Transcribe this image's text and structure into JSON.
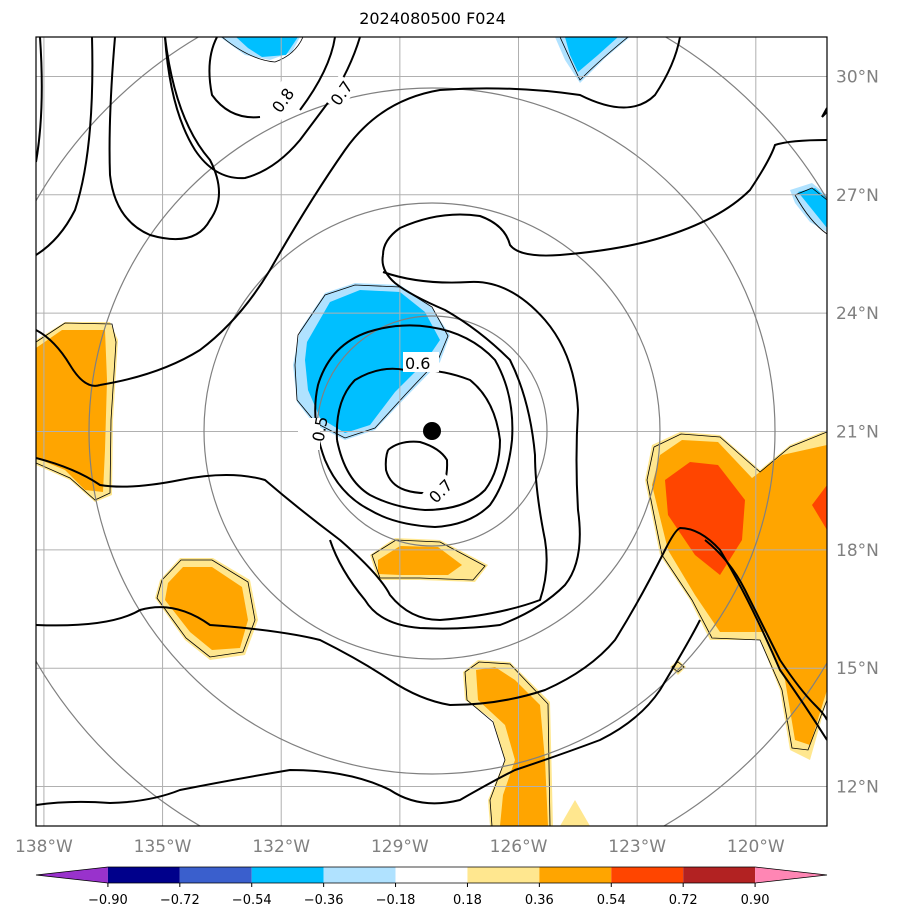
{
  "title": "2024080500 F024",
  "map": {
    "lon_range": [
      -138.2,
      -118.2
    ],
    "lat_range": [
      11,
      31
    ],
    "lon_ticks": [
      {
        "value": -138,
        "label": "138°W"
      },
      {
        "value": -135,
        "label": "135°W"
      },
      {
        "value": -132,
        "label": "132°W"
      },
      {
        "value": -129,
        "label": "129°W"
      },
      {
        "value": -126,
        "label": "126°W"
      },
      {
        "value": -123,
        "label": "123°W"
      },
      {
        "value": -120,
        "label": "120°W"
      }
    ],
    "lat_ticks": [
      {
        "value": 12,
        "label": "12°N"
      },
      {
        "value": 15,
        "label": "15°N"
      },
      {
        "value": 18,
        "label": "18°N"
      },
      {
        "value": 21,
        "label": "21°N"
      },
      {
        "value": 24,
        "label": "24°N"
      },
      {
        "value": 27,
        "label": "27°N"
      },
      {
        "value": 30,
        "label": "30°N"
      }
    ],
    "grid": true,
    "center": {
      "lon": -128.2,
      "lat": 21.0
    },
    "contour_labels": [
      "0.8",
      "0.7",
      "0.6",
      "0.5",
      "0.7"
    ]
  },
  "colorbar": {
    "colors": [
      "#9932cc",
      "#00008b",
      "#3a5fcd",
      "#00bfff",
      "#b0e2ff",
      "#ffffff",
      "#ffe78f",
      "#ffa500",
      "#ff4500",
      "#b22222",
      "#ff86b4"
    ],
    "labels": [
      "−0.90",
      "−0.72",
      "−0.54",
      "−0.36",
      "−0.18",
      "0.18",
      "0.36",
      "0.54",
      "0.72",
      "0.90"
    ]
  }
}
